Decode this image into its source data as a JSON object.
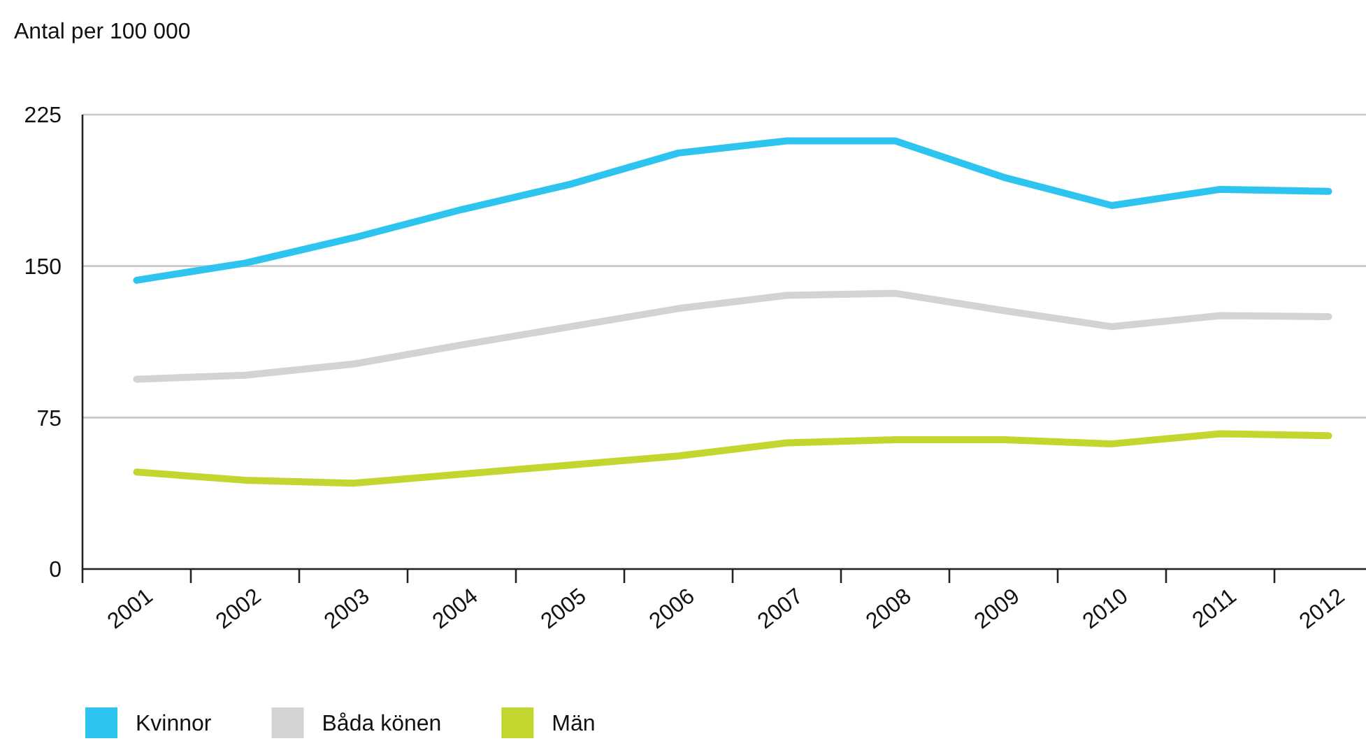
{
  "chart_data": {
    "type": "line",
    "ylabel": "Antal per 100 000",
    "categories": [
      "2001",
      "2002",
      "2003",
      "2004",
      "2005",
      "2006",
      "2007",
      "2008",
      "2009",
      "2010",
      "2011",
      "2012"
    ],
    "series": [
      {
        "name": "Kvinnor",
        "color": "#2ec4f0",
        "values": [
          143,
          151.5,
          164,
          178,
          190.5,
          206,
          212,
          212,
          194,
          180,
          188,
          187
        ]
      },
      {
        "name": "Båda könen",
        "color": "#d3d3d3",
        "values": [
          94,
          96,
          101.5,
          111,
          120,
          129,
          135.5,
          136.5,
          128,
          120,
          125.5,
          125
        ]
      },
      {
        "name": "Män",
        "color": "#c3d630",
        "values": [
          48,
          44,
          42.5,
          47,
          51.5,
          56,
          62.5,
          64,
          64,
          62,
          67,
          66
        ]
      }
    ],
    "ylim": [
      0,
      225
    ],
    "yticks": [
      0,
      75,
      150,
      225
    ],
    "grid": "y",
    "legend": "bottom left"
  }
}
